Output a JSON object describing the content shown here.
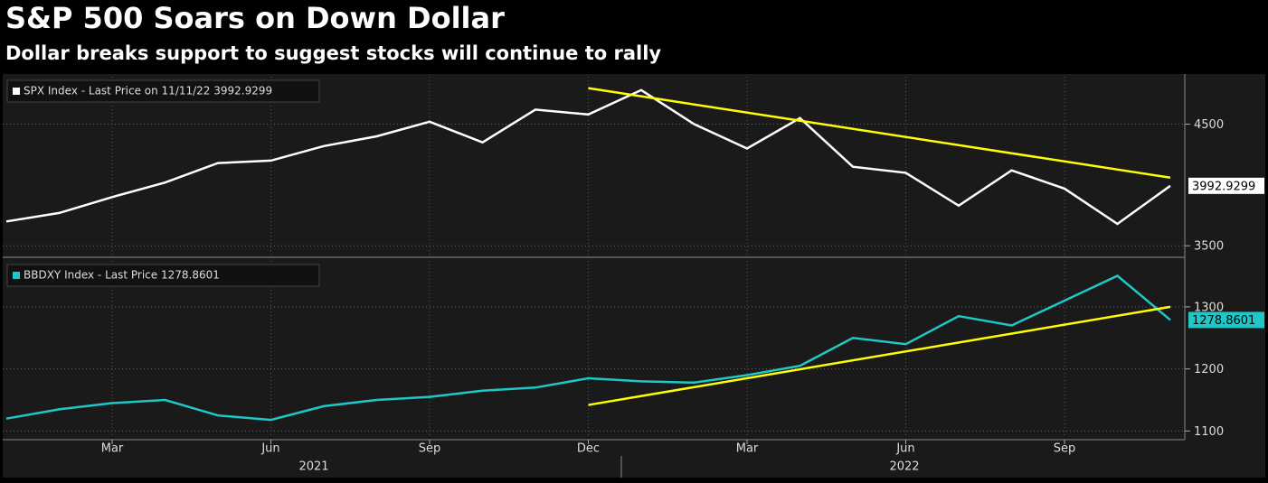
{
  "header": {
    "title": "S&P 500 Soars on Down Dollar",
    "subtitle": "Dollar breaks support to suggest stocks will continue to rally"
  },
  "chart_data": [
    {
      "type": "line",
      "x": [
        "2021-01",
        "2021-02",
        "2021-03",
        "2021-04",
        "2021-05",
        "2021-06",
        "2021-07",
        "2021-08",
        "2021-09",
        "2021-10",
        "2021-11",
        "2021-12",
        "2022-01",
        "2022-02",
        "2022-03",
        "2022-04",
        "2022-05",
        "2022-06",
        "2022-07",
        "2022-08",
        "2022-09",
        "2022-10",
        "2022-11"
      ],
      "series": [
        {
          "name": "SPX Index - Last Price on 11/11/22 3992.9299",
          "color": "#ffffff",
          "values": [
            3700,
            3770,
            3900,
            4020,
            4180,
            4200,
            4320,
            4400,
            4520,
            4350,
            4620,
            4580,
            4780,
            4500,
            4300,
            4550,
            4150,
            4100,
            3830,
            4120,
            3970,
            3680,
            3992.9299
          ]
        }
      ],
      "trendline": {
        "x": [
          "2021-12",
          "2022-11"
        ],
        "values": [
          4796,
          4060
        ],
        "color": "#ffff00"
      },
      "ylim": [
        3420,
        4890
      ],
      "yticks": [
        3500,
        4500
      ],
      "grid": true,
      "xticks": [
        {
          "value": "2021-03",
          "label": "Mar"
        },
        {
          "value": "2021-06",
          "label": "Jun"
        },
        {
          "value": "2021-09",
          "label": "Sep"
        },
        {
          "value": "2021-12",
          "label": "Dec"
        },
        {
          "value": "2022-03",
          "label": "Mar"
        },
        {
          "value": "2022-06",
          "label": "Jun"
        },
        {
          "value": "2022-09",
          "label": "Sep"
        }
      ]
    },
    {
      "type": "line",
      "x": [
        "2021-01",
        "2021-02",
        "2021-03",
        "2021-04",
        "2021-05",
        "2021-06",
        "2021-07",
        "2021-08",
        "2021-09",
        "2021-10",
        "2021-11",
        "2021-12",
        "2022-01",
        "2022-02",
        "2022-03",
        "2022-04",
        "2022-05",
        "2022-06",
        "2022-07",
        "2022-08",
        "2022-09",
        "2022-10",
        "2022-11"
      ],
      "series": [
        {
          "name": "BBDXY Index - Last Price 1278.8601",
          "color": "#1fc7c7",
          "values": [
            1120,
            1135,
            1145,
            1150,
            1125,
            1118,
            1140,
            1150,
            1155,
            1165,
            1170,
            1185,
            1180,
            1178,
            1190,
            1205,
            1250,
            1240,
            1285,
            1270,
            1310,
            1350,
            1278.8601
          ]
        }
      ],
      "trendline": {
        "x": [
          "2021-12",
          "2022-11"
        ],
        "values": [
          1142,
          1300
        ],
        "color": "#ffff00"
      },
      "ylim": [
        1089,
        1374
      ],
      "yticks": [
        1100,
        1200,
        1300
      ],
      "grid": true,
      "xticks": [
        {
          "value": "2021-03",
          "label": "Mar"
        },
        {
          "value": "2021-06",
          "label": "Jun"
        },
        {
          "value": "2021-09",
          "label": "Sep"
        },
        {
          "value": "2021-12",
          "label": "Dec"
        },
        {
          "value": "2022-03",
          "label": "Mar"
        },
        {
          "value": "2022-06",
          "label": "Jun"
        },
        {
          "value": "2022-09",
          "label": "Sep"
        }
      ],
      "years": [
        "2021",
        "2022"
      ]
    }
  ]
}
